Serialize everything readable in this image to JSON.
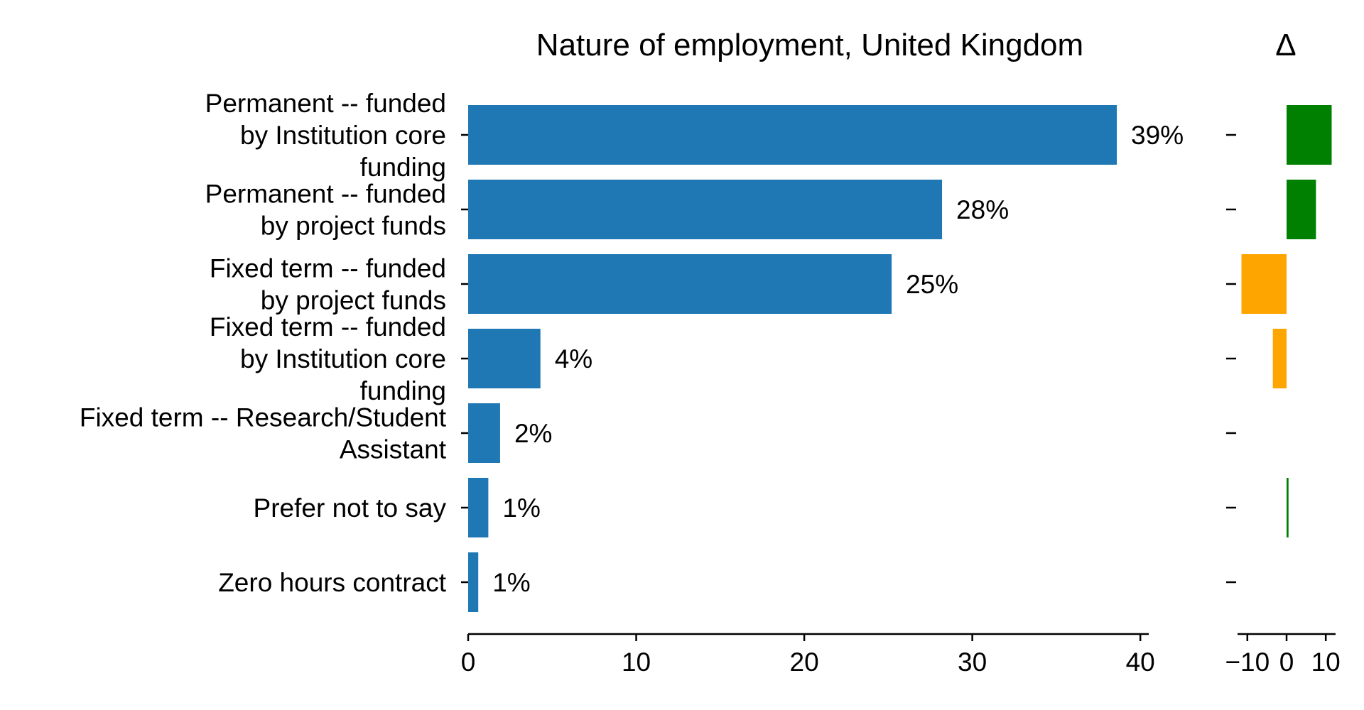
{
  "chart_data": [
    {
      "type": "bar",
      "orientation": "horizontal",
      "title": "Nature of employment, United Kingdom",
      "xlabel": "",
      "ylabel": "",
      "xlim": [
        0,
        40.5
      ],
      "xticks": [
        0,
        10,
        20,
        30,
        40
      ],
      "categories": [
        [
          "Permanent -- funded",
          "by Institution core",
          "funding"
        ],
        [
          "Permanent -- funded",
          "by project funds"
        ],
        [
          "Fixed term -- funded",
          "by project funds"
        ],
        [
          "Fixed term -- funded",
          "by Institution core",
          "funding"
        ],
        [
          "Fixed term -- Research/Student",
          "Assistant"
        ],
        [
          "Prefer not to say"
        ],
        [
          "Zero hours contract"
        ]
      ],
      "values": [
        38.6,
        28.2,
        25.2,
        4.3,
        1.9,
        1.2,
        0.6
      ],
      "data_labels": [
        "39%",
        "28%",
        "25%",
        "4%",
        "2%",
        "1%",
        "1%"
      ],
      "bar_color": "#1f77b4",
      "grid": false
    },
    {
      "type": "bar",
      "orientation": "horizontal",
      "title": "Δ",
      "xlim": [
        -12.5,
        12.5
      ],
      "xticks": [
        -10,
        0,
        10
      ],
      "xtick_labels": [
        "−10",
        "0",
        "10"
      ],
      "values": [
        11.5,
        7.5,
        -11.5,
        -3.5,
        0,
        0.5,
        0
      ],
      "positive_color": "#008000",
      "negative_color": "#ffa500",
      "grid": false
    }
  ]
}
